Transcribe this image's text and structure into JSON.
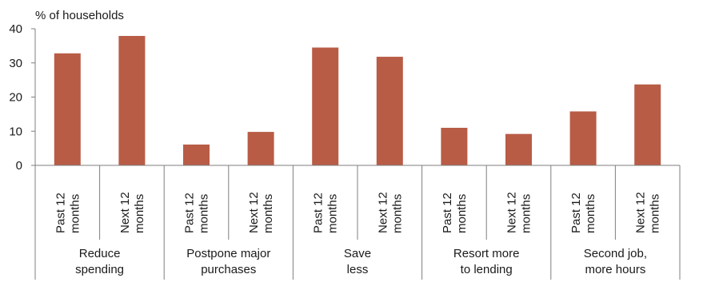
{
  "chart_data": {
    "type": "bar",
    "ylabel": "% of households",
    "ylim": [
      0,
      40
    ],
    "yticks": [
      0,
      10,
      20,
      30,
      40
    ],
    "grid": false,
    "bar_color": "#b85c46",
    "groups": [
      {
        "label": [
          "Reduce",
          "spending"
        ],
        "bars": [
          {
            "label": [
              "Past 12",
              "months"
            ],
            "value": 32.8
          },
          {
            "label": [
              "Next 12",
              "months"
            ],
            "value": 37.9
          }
        ]
      },
      {
        "label": [
          "Postpone major",
          "purchases"
        ],
        "bars": [
          {
            "label": [
              "Past 12",
              "months"
            ],
            "value": 6.1
          },
          {
            "label": [
              "Next 12",
              "months"
            ],
            "value": 9.8
          }
        ]
      },
      {
        "label": [
          "Save",
          "less"
        ],
        "bars": [
          {
            "label": [
              "Past 12",
              "months"
            ],
            "value": 34.5
          },
          {
            "label": [
              "Next 12",
              "months"
            ],
            "value": 31.8
          }
        ]
      },
      {
        "label": [
          "Resort more",
          "to lending"
        ],
        "bars": [
          {
            "label": [
              "Past 12",
              "months"
            ],
            "value": 11.0
          },
          {
            "label": [
              "Next 12",
              "months"
            ],
            "value": 9.2
          }
        ]
      },
      {
        "label": [
          "Second job,",
          "more hours"
        ],
        "bars": [
          {
            "label": [
              "Past 12",
              "months"
            ],
            "value": 15.8
          },
          {
            "label": [
              "Next 12",
              "months"
            ],
            "value": 23.7
          }
        ]
      }
    ]
  }
}
